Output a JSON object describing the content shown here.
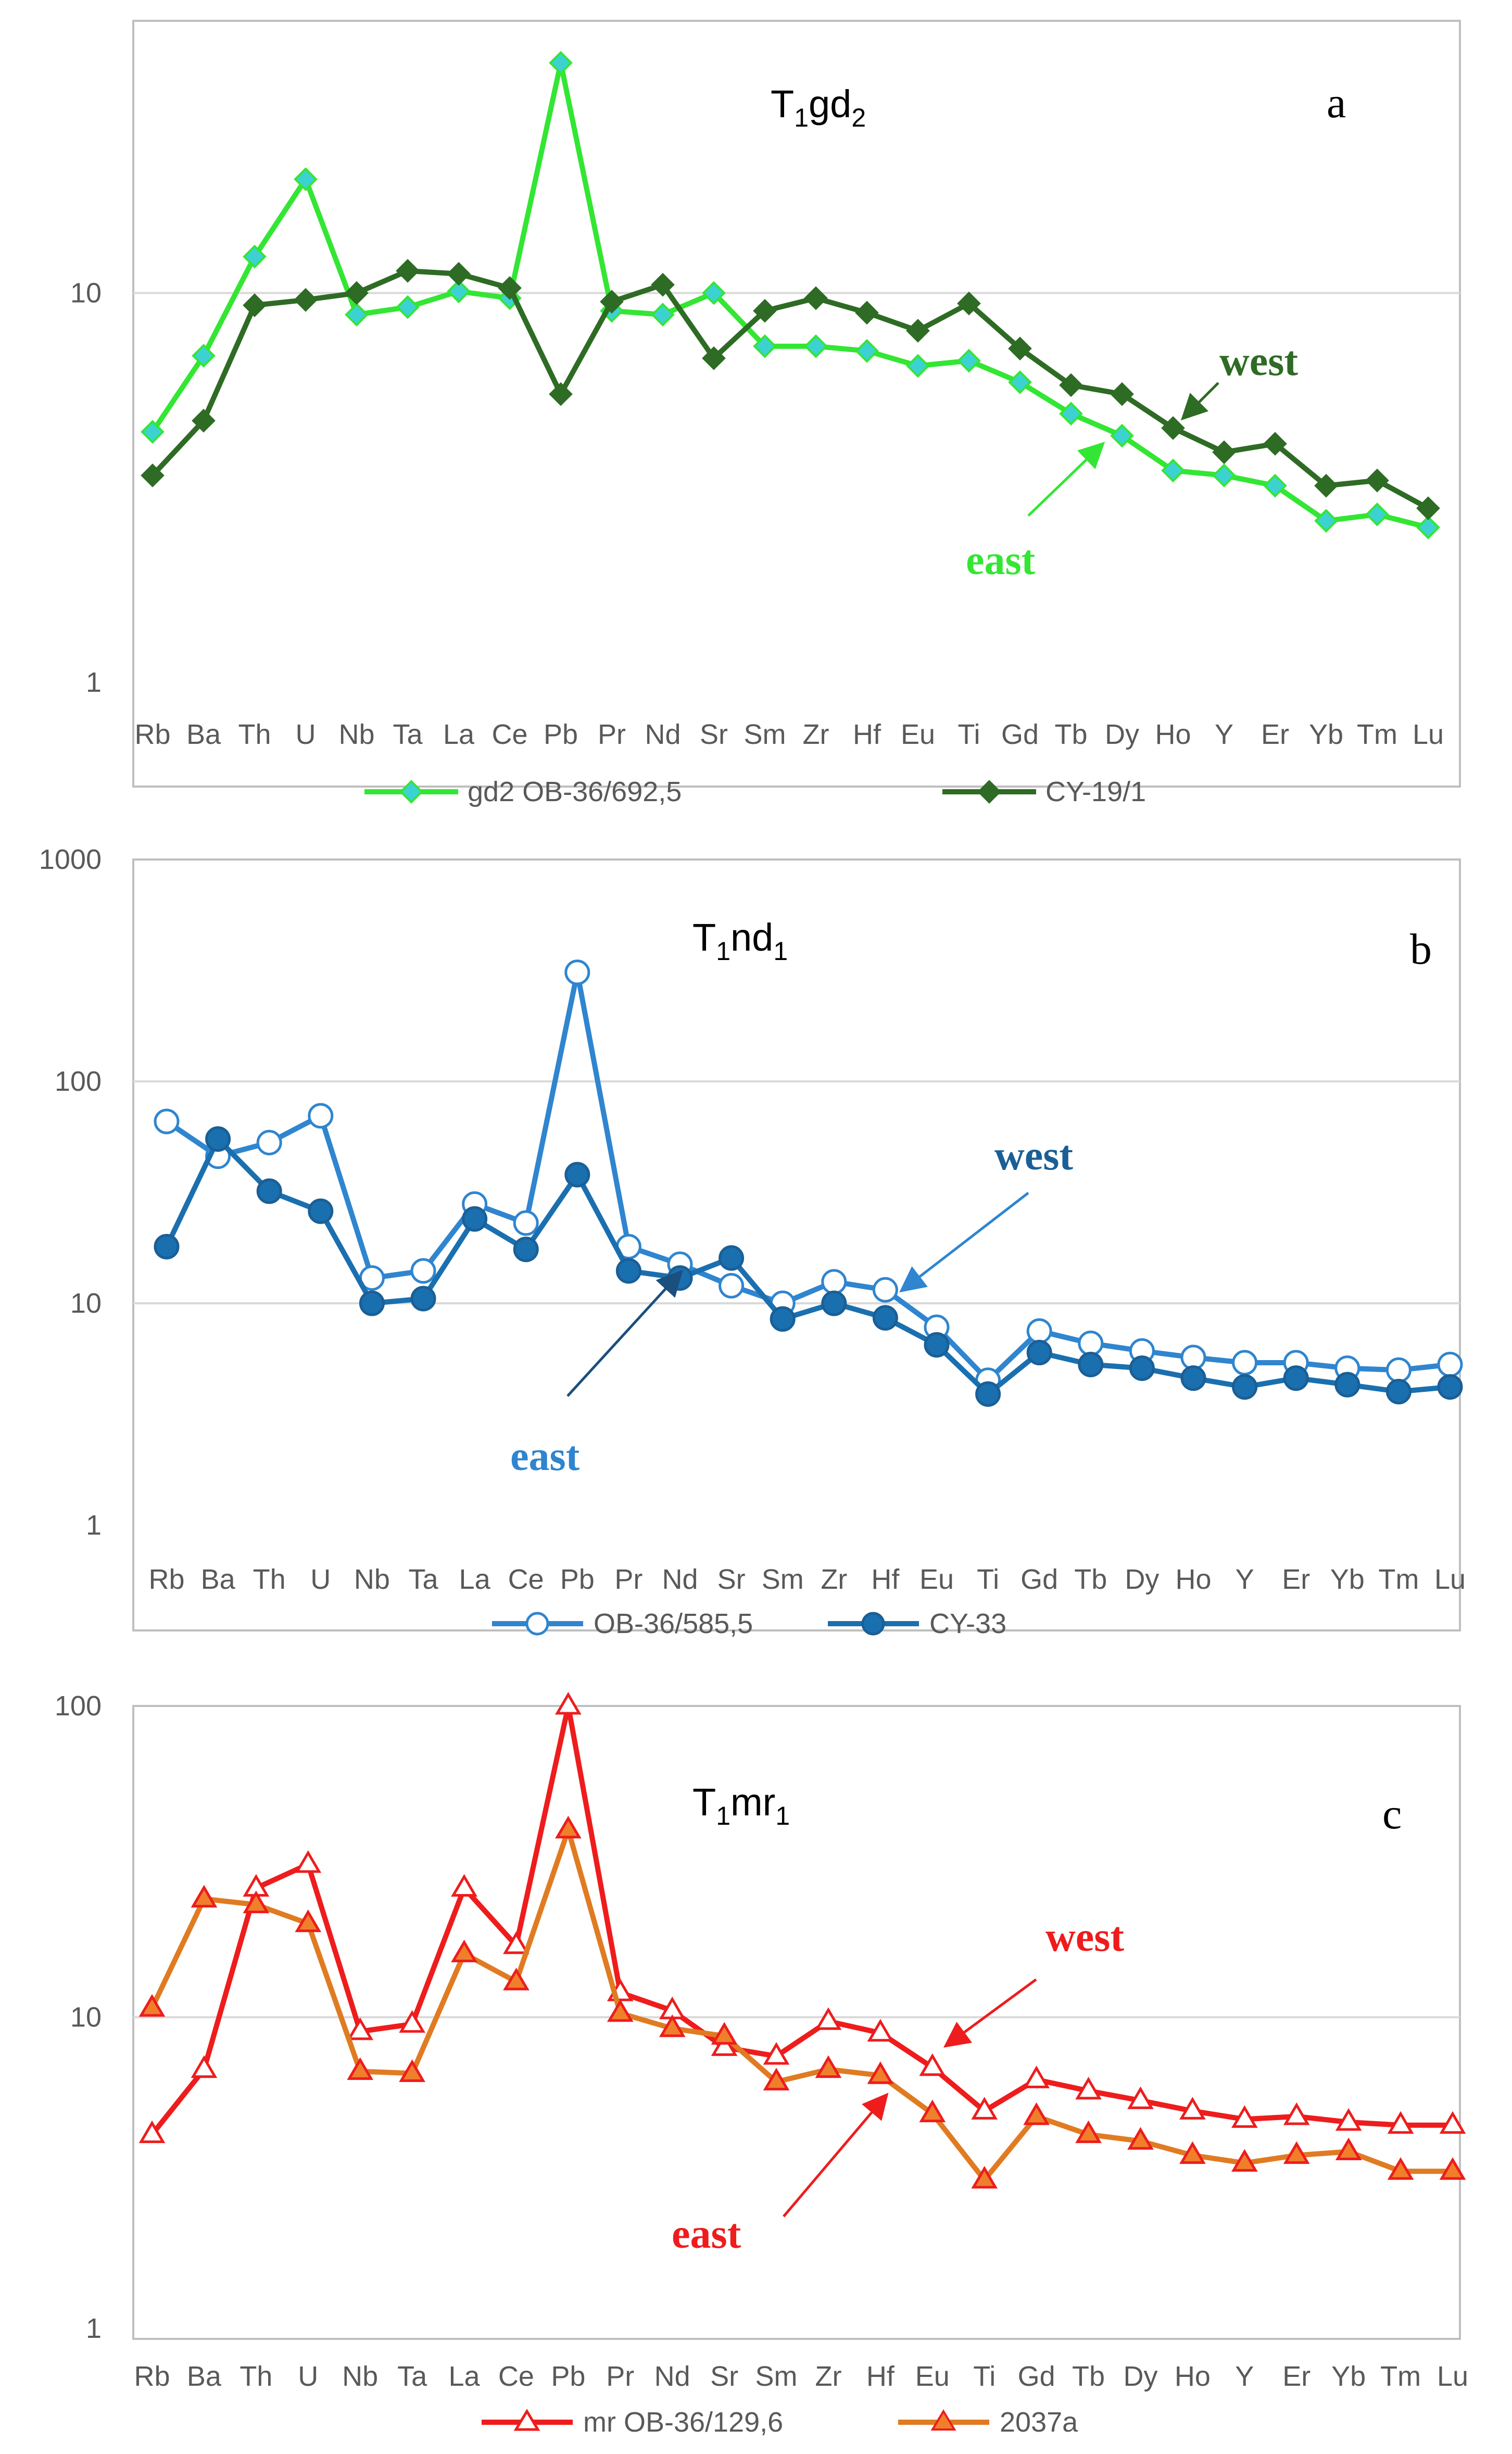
{
  "chart_data": [
    {
      "type": "line",
      "panel_letter": "a",
      "title": {
        "base": "T",
        "sub1": "1",
        "mid": "gd",
        "sub2": "2"
      },
      "y_scale": "log",
      "ylim": [
        1,
        50
      ],
      "y_ticks": [
        "1",
        "10"
      ],
      "categories": [
        "Rb",
        "Ba",
        "Th",
        "U",
        "Nb",
        "Ta",
        "La",
        "Ce",
        "Pb",
        "Pr",
        "Nd",
        "Sr",
        "Sm",
        "Zr",
        "Hf",
        "Eu",
        "Ti",
        "Gd",
        "Tb",
        "Dy",
        "Ho",
        "Y",
        "Er",
        "Yb",
        "Tm",
        "Lu"
      ],
      "series": [
        {
          "name": "gd2 OB-36/692,5",
          "color": "#33e633",
          "marker": "diamond",
          "marker_fill": "#3cd2d2",
          "values": [
            4.4,
            6.9,
            12.4,
            19.6,
            8.8,
            9.2,
            10.1,
            9.7,
            39.0,
            9.0,
            8.8,
            10.0,
            7.3,
            7.3,
            7.1,
            6.5,
            6.7,
            5.9,
            4.9,
            4.3,
            3.5,
            3.4,
            3.2,
            2.6,
            2.7,
            2.5
          ]
        },
        {
          "name": "CY-19/1",
          "color": "#2e6b24",
          "marker": "diamond",
          "marker_fill": "#2e6b24",
          "values": [
            3.4,
            4.7,
            9.3,
            9.6,
            10.0,
            11.4,
            11.2,
            10.3,
            5.5,
            9.5,
            10.5,
            6.8,
            9.0,
            9.7,
            8.9,
            8.0,
            9.4,
            7.2,
            5.8,
            5.5,
            4.5,
            3.9,
            4.1,
            3.2,
            3.3,
            2.8
          ]
        }
      ],
      "annotations": [
        {
          "text": "west",
          "color": "#2e6b24"
        },
        {
          "text": "east",
          "color": "#33e633"
        }
      ]
    },
    {
      "type": "line",
      "panel_letter": "b",
      "title": {
        "base": "T",
        "sub1": "1",
        "mid": "nd",
        "sub2": "1"
      },
      "y_scale": "log",
      "ylim": [
        1,
        1000
      ],
      "y_ticks": [
        "1",
        "10",
        "100",
        "1000"
      ],
      "categories": [
        "Rb",
        "Ba",
        "Th",
        "U",
        "Nb",
        "Ta",
        "La",
        "Ce",
        "Pb",
        "Pr",
        "Nd",
        "Sr",
        "Sm",
        "Zr",
        "Hf",
        "Eu",
        "Ti",
        "Gd",
        "Tb",
        "Dy",
        "Ho",
        "Y",
        "Er",
        "Yb",
        "Tm",
        "Lu"
      ],
      "series": [
        {
          "name": "OB-36/585,5",
          "color": "#2f85cf",
          "marker": "circle-open",
          "marker_fill": "#ffffff",
          "values": [
            66,
            46,
            53,
            70,
            13,
            14,
            28,
            23,
            310,
            18,
            15,
            12,
            10,
            12.5,
            11.5,
            7.8,
            4.5,
            7.5,
            6.6,
            6.1,
            5.7,
            5.4,
            5.4,
            5.1,
            5.0,
            5.3
          ]
        },
        {
          "name": "CY-33",
          "color": "#1a6faf",
          "marker": "circle",
          "marker_fill": "#1a6faf",
          "values": [
            18,
            55,
            32,
            26,
            10,
            10.5,
            24,
            17.5,
            38,
            14,
            13,
            16,
            8.5,
            10,
            8.6,
            6.5,
            3.9,
            6.0,
            5.3,
            5.1,
            4.6,
            4.2,
            4.6,
            4.3,
            4.0,
            4.2
          ]
        }
      ],
      "annotations": [
        {
          "text": "west",
          "color": "#1a5f96"
        },
        {
          "text": "east",
          "color": "#2f85cf"
        }
      ]
    },
    {
      "type": "line",
      "panel_letter": "c",
      "title": {
        "base": "T",
        "sub1": "1",
        "mid": "mr",
        "sub2": "1"
      },
      "y_scale": "log",
      "ylim": [
        1,
        100
      ],
      "y_ticks": [
        "1",
        "10",
        "100"
      ],
      "categories": [
        "Rb",
        "Ba",
        "Th",
        "U",
        "Nb",
        "Ta",
        "La",
        "Ce",
        "Pb",
        "Pr",
        "Nd",
        "Sr",
        "Sm",
        "Zr",
        "Hf",
        "Eu",
        "Ti",
        "Gd",
        "Tb",
        "Dy",
        "Ho",
        "Y",
        "Er",
        "Yb",
        "Tm",
        "Lu"
      ],
      "series": [
        {
          "name": "mr OB-36/129,6",
          "color": "#ee1c1c",
          "marker": "triangle-open",
          "marker_fill": "#ffffff",
          "values": [
            4.2,
            6.8,
            26,
            31,
            9.0,
            9.5,
            26,
            17,
            100,
            12,
            10.5,
            8.0,
            7.5,
            9.7,
            8.9,
            6.9,
            5.0,
            6.3,
            5.8,
            5.4,
            5.0,
            4.7,
            4.8,
            4.6,
            4.5,
            4.5
          ]
        },
        {
          "name": "2037a",
          "color": "#e07b22",
          "marker": "triangle",
          "marker_fill": "#f07f2c",
          "values": [
            10.7,
            24,
            23,
            20,
            6.7,
            6.6,
            16,
            13,
            40,
            10.3,
            9.2,
            8.7,
            6.2,
            6.8,
            6.5,
            4.9,
            3.0,
            4.8,
            4.2,
            4.0,
            3.6,
            3.4,
            3.6,
            3.7,
            3.2,
            3.2
          ]
        }
      ],
      "annotations": [
        {
          "text": "west",
          "color": "#ee1c1c"
        },
        {
          "text": "east",
          "color": "#ee1c1c"
        }
      ]
    }
  ]
}
